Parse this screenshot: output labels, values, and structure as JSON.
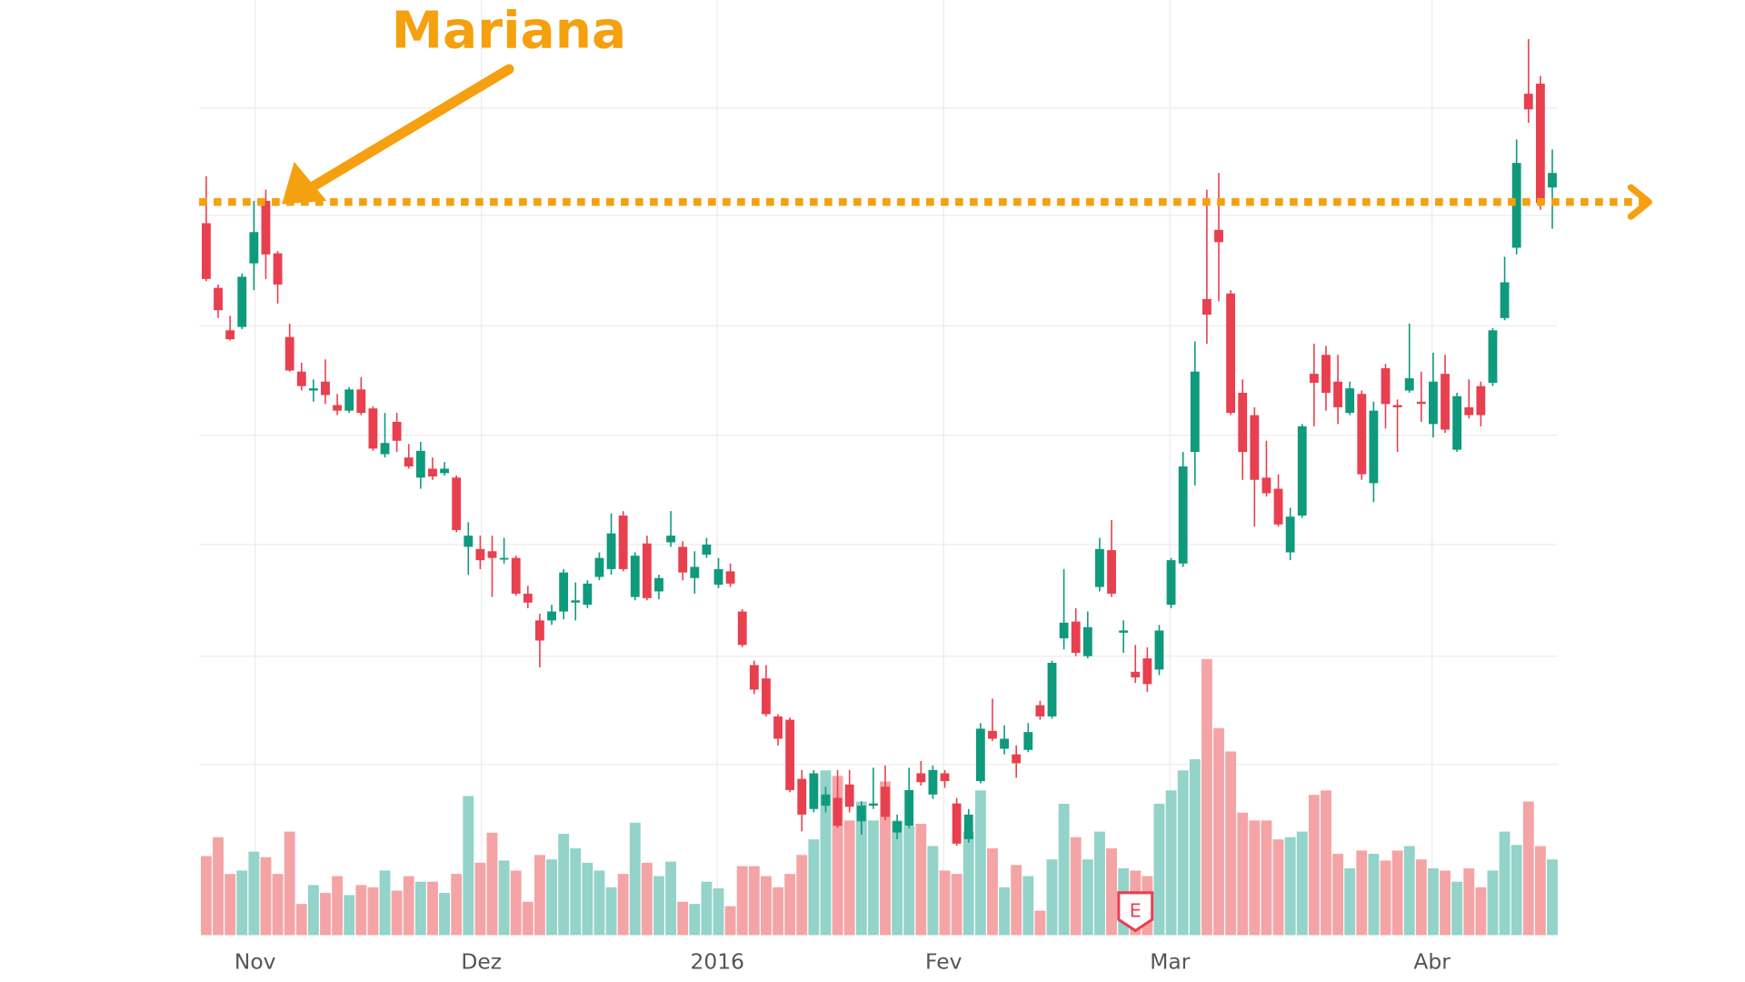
{
  "chart_data": {
    "type": "candlestick",
    "annotation": {
      "text": "Mariana",
      "level": 61.9,
      "color": "#f5a00f"
    },
    "up_color": "#0f9a7d",
    "down_color": "#e8404f",
    "volume_up_color": "#93d3c9",
    "volume_down_color": "#f5a4a6",
    "xlim": [
      -0.6,
      113.4
    ],
    "xticks": [
      {
        "value": 4.1,
        "label": "Nov"
      },
      {
        "value": 23.1,
        "label": "Dez"
      },
      {
        "value": 42.9,
        "label": "2016"
      },
      {
        "value": 61.9,
        "label": "Fev"
      },
      {
        "value": 80.9,
        "label": "Mar"
      },
      {
        "value": 102.9,
        "label": "Abr"
      }
    ],
    "ylim": [
      0,
      80
    ],
    "ygrid": [
      70.3,
      60.7,
      50.8,
      41,
      31.2,
      21.2,
      11.5
    ],
    "y2lim": [
      0,
      84
    ],
    "grid": true,
    "events": [
      {
        "x": 78,
        "label": "E"
      }
    ],
    "open": [
      60,
      54.2,
      50.4,
      50.7,
      56.4,
      62,
      57.3,
      49.8,
      46.7,
      45,
      45.8,
      43.7,
      43.2,
      45.1,
      43.4,
      39.3,
      42.2,
      39,
      37.2,
      38,
      37.6,
      37.2,
      31,
      30.8,
      30.6,
      29.9,
      30,
      26.8,
      24.4,
      24.4,
      25.2,
      26,
      25.8,
      28.3,
      29,
      33.8,
      26.5,
      31.3,
      27,
      31.4,
      31,
      28.2,
      30.3,
      27.6,
      28.8,
      25.2,
      20.4,
      19.2,
      15.8,
      15.5,
      10.2,
      7.5,
      7.8,
      8.5,
      9.7,
      6.4,
      7.8,
      9.5,
      5.4,
      6,
      10.7,
      8.8,
      10.7,
      8,
      4.8,
      10,
      14.5,
      12.9,
      12.4,
      12.8,
      16.8,
      15.8,
      22.8,
      24.3,
      21.2,
      27.4,
      30.7,
      23.3,
      19.8,
      21,
      20,
      25.8,
      29.5,
      39.5,
      53.2,
      59.4,
      53.7,
      44.8,
      42.8,
      37.2,
      36.2,
      30.5,
      33.8,
      46.5,
      48.2,
      45.8,
      43,
      44.7,
      36.7,
      47,
      43.7,
      45,
      44,
      42,
      46.5,
      39.7,
      43.5,
      45.4,
      45.7,
      51.5,
      57.8,
      71.6,
      72.5,
      63.2
    ],
    "high": [
      64.2,
      54.5,
      51.7,
      55.5,
      62,
      63,
      57.5,
      51,
      47.5,
      46,
      47.8,
      44.7,
      45.3,
      46.2,
      43.6,
      43,
      43,
      40.2,
      40.4,
      39,
      38.6,
      37.4,
      33.2,
      32,
      32,
      31.8,
      30.2,
      27.5,
      25,
      25.8,
      29,
      27.8,
      28,
      30.5,
      34,
      34.2,
      30.5,
      32,
      28.5,
      34.2,
      31.5,
      30.6,
      31.8,
      30,
      29.5,
      25.4,
      20.8,
      20.4,
      16,
      15.7,
      11,
      11,
      9.5,
      11,
      11,
      8.2,
      11.2,
      11.4,
      7,
      11.2,
      11.8,
      11.4,
      11,
      8.5,
      7.5,
      15.2,
      17.4,
      15,
      13.2,
      15.2,
      17.2,
      20.8,
      29,
      25.5,
      25.2,
      31.8,
      33.4,
      24.4,
      22.2,
      22,
      24,
      30,
      39.5,
      49.4,
      63,
      64.5,
      54,
      46,
      43.5,
      40.5,
      37.5,
      34.5,
      42,
      49.2,
      49,
      48.2,
      45.8,
      45,
      44,
      47.4,
      44.2,
      51,
      46.7,
      48.4,
      48.2,
      44.8,
      46,
      45.8,
      50.6,
      57,
      67.5,
      76.5,
      73.2,
      66.6
    ],
    "low": [
      54.8,
      51.5,
      49.5,
      50.5,
      54,
      55,
      52.8,
      46.7,
      45,
      44,
      43.8,
      42.8,
      43,
      42.8,
      39.6,
      39,
      39.5,
      38,
      36.2,
      37,
      37.4,
      32.3,
      28.5,
      29,
      26.5,
      29.5,
      26.6,
      25.5,
      20.2,
      24,
      24.5,
      24.4,
      25.5,
      28,
      28.5,
      28.8,
      26.2,
      26.2,
      26.3,
      31,
      28,
      26.8,
      30,
      27.3,
      27.4,
      22,
      17.8,
      15.8,
      13.2,
      9,
      5.5,
      7.2,
      7.2,
      5.8,
      7.2,
      5.2,
      7.5,
      6.5,
      4.8,
      5.8,
      9.6,
      8.4,
      9.4,
      4.2,
      4.5,
      9.8,
      13.6,
      12.4,
      10.3,
      12.6,
      15.5,
      15.6,
      21.8,
      21.2,
      21,
      27,
      26.5,
      21.5,
      18.8,
      18,
      19.5,
      25.5,
      29.2,
      36.5,
      49.2,
      53,
      42.8,
      37,
      32.8,
      35.5,
      32.8,
      29.8,
      33.6,
      41.8,
      43.2,
      42,
      42.8,
      37,
      35,
      41.6,
      39.5,
      44.8,
      42.2,
      40.8,
      41.2,
      39.5,
      42.5,
      41.8,
      45.4,
      51.3,
      57.2,
      69,
      61.2,
      59.5
    ],
    "close": [
      55,
      52.2,
      49.6,
      55.2,
      59.2,
      57.2,
      54.5,
      46.8,
      45.4,
      45.2,
      44.6,
      43.2,
      45.1,
      43,
      39.8,
      40.3,
      40.5,
      38.2,
      39.6,
      37.3,
      38,
      32.5,
      32,
      29.8,
      30,
      30,
      26.8,
      26,
      22.6,
      25.2,
      28.7,
      26.2,
      27.7,
      30,
      32.2,
      29,
      30.2,
      26.4,
      28.2,
      32,
      28.7,
      29.2,
      31.2,
      29,
      27.7,
      22.2,
      18.2,
      16,
      13.8,
      9.2,
      7,
      10.7,
      8.8,
      6,
      7.7,
      7.8,
      8,
      6.8,
      6.4,
      9.2,
      9.9,
      11,
      10,
      4.4,
      7,
      14.7,
      13.8,
      13.8,
      11.6,
      14.4,
      15.8,
      20.6,
      24.2,
      21.5,
      23.8,
      30.8,
      26.8,
      23.5,
      19.3,
      18.7,
      23.5,
      29.8,
      38.2,
      46.7,
      51.8,
      58.3,
      43,
      39.5,
      37,
      35.8,
      33,
      33.7,
      41.8,
      45.7,
      44.8,
      43.5,
      45.2,
      37.5,
      43.2,
      43.8,
      43.5,
      46.1,
      43.8,
      45.8,
      41.5,
      44.5,
      42.8,
      42.8,
      50.4,
      54.7,
      65.4,
      70.2,
      61.8,
      64.5
    ],
    "volume": [
      7.1,
      8.8,
      5.5,
      5.8,
      7.5,
      7,
      5.5,
      9.3,
      2.8,
      4.5,
      3.8,
      5.3,
      3.6,
      4.5,
      4.3,
      5.8,
      4,
      5.3,
      4.8,
      4.8,
      3.8,
      5.5,
      12.5,
      6.5,
      9.2,
      6.7,
      5.8,
      3,
      7.2,
      6.8,
      9.1,
      7.8,
      6.5,
      5.8,
      4.3,
      5.5,
      10.1,
      6.5,
      5.3,
      6.6,
      3,
      2.8,
      4.8,
      4.2,
      2.6,
      6.2,
      6.2,
      5.3,
      4.3,
      5.5,
      7.2,
      8.6,
      14.8,
      14.3,
      10.3,
      12,
      10.3,
      13.8,
      10.3,
      9.8,
      10,
      8,
      5.8,
      5.5,
      9.3,
      13,
      7.8,
      4.3,
      6.3,
      5.3,
      2.2,
      6.8,
      11.8,
      8.8,
      6.8,
      9.3,
      7.8,
      6,
      5.8,
      5.3,
      11.8,
      13,
      14.8,
      15.8,
      24.8,
      18.6,
      16.5,
      11,
      10.3,
      10.3,
      8.6,
      8.8,
      9.3,
      12.6,
      13,
      7.3,
      6,
      7.6,
      7.3,
      6.7,
      7.6,
      8,
      6.8,
      6,
      5.8,
      4.8,
      6,
      4.3,
      5.8,
      9.3,
      8.1,
      12,
      8,
      6.8
    ]
  }
}
